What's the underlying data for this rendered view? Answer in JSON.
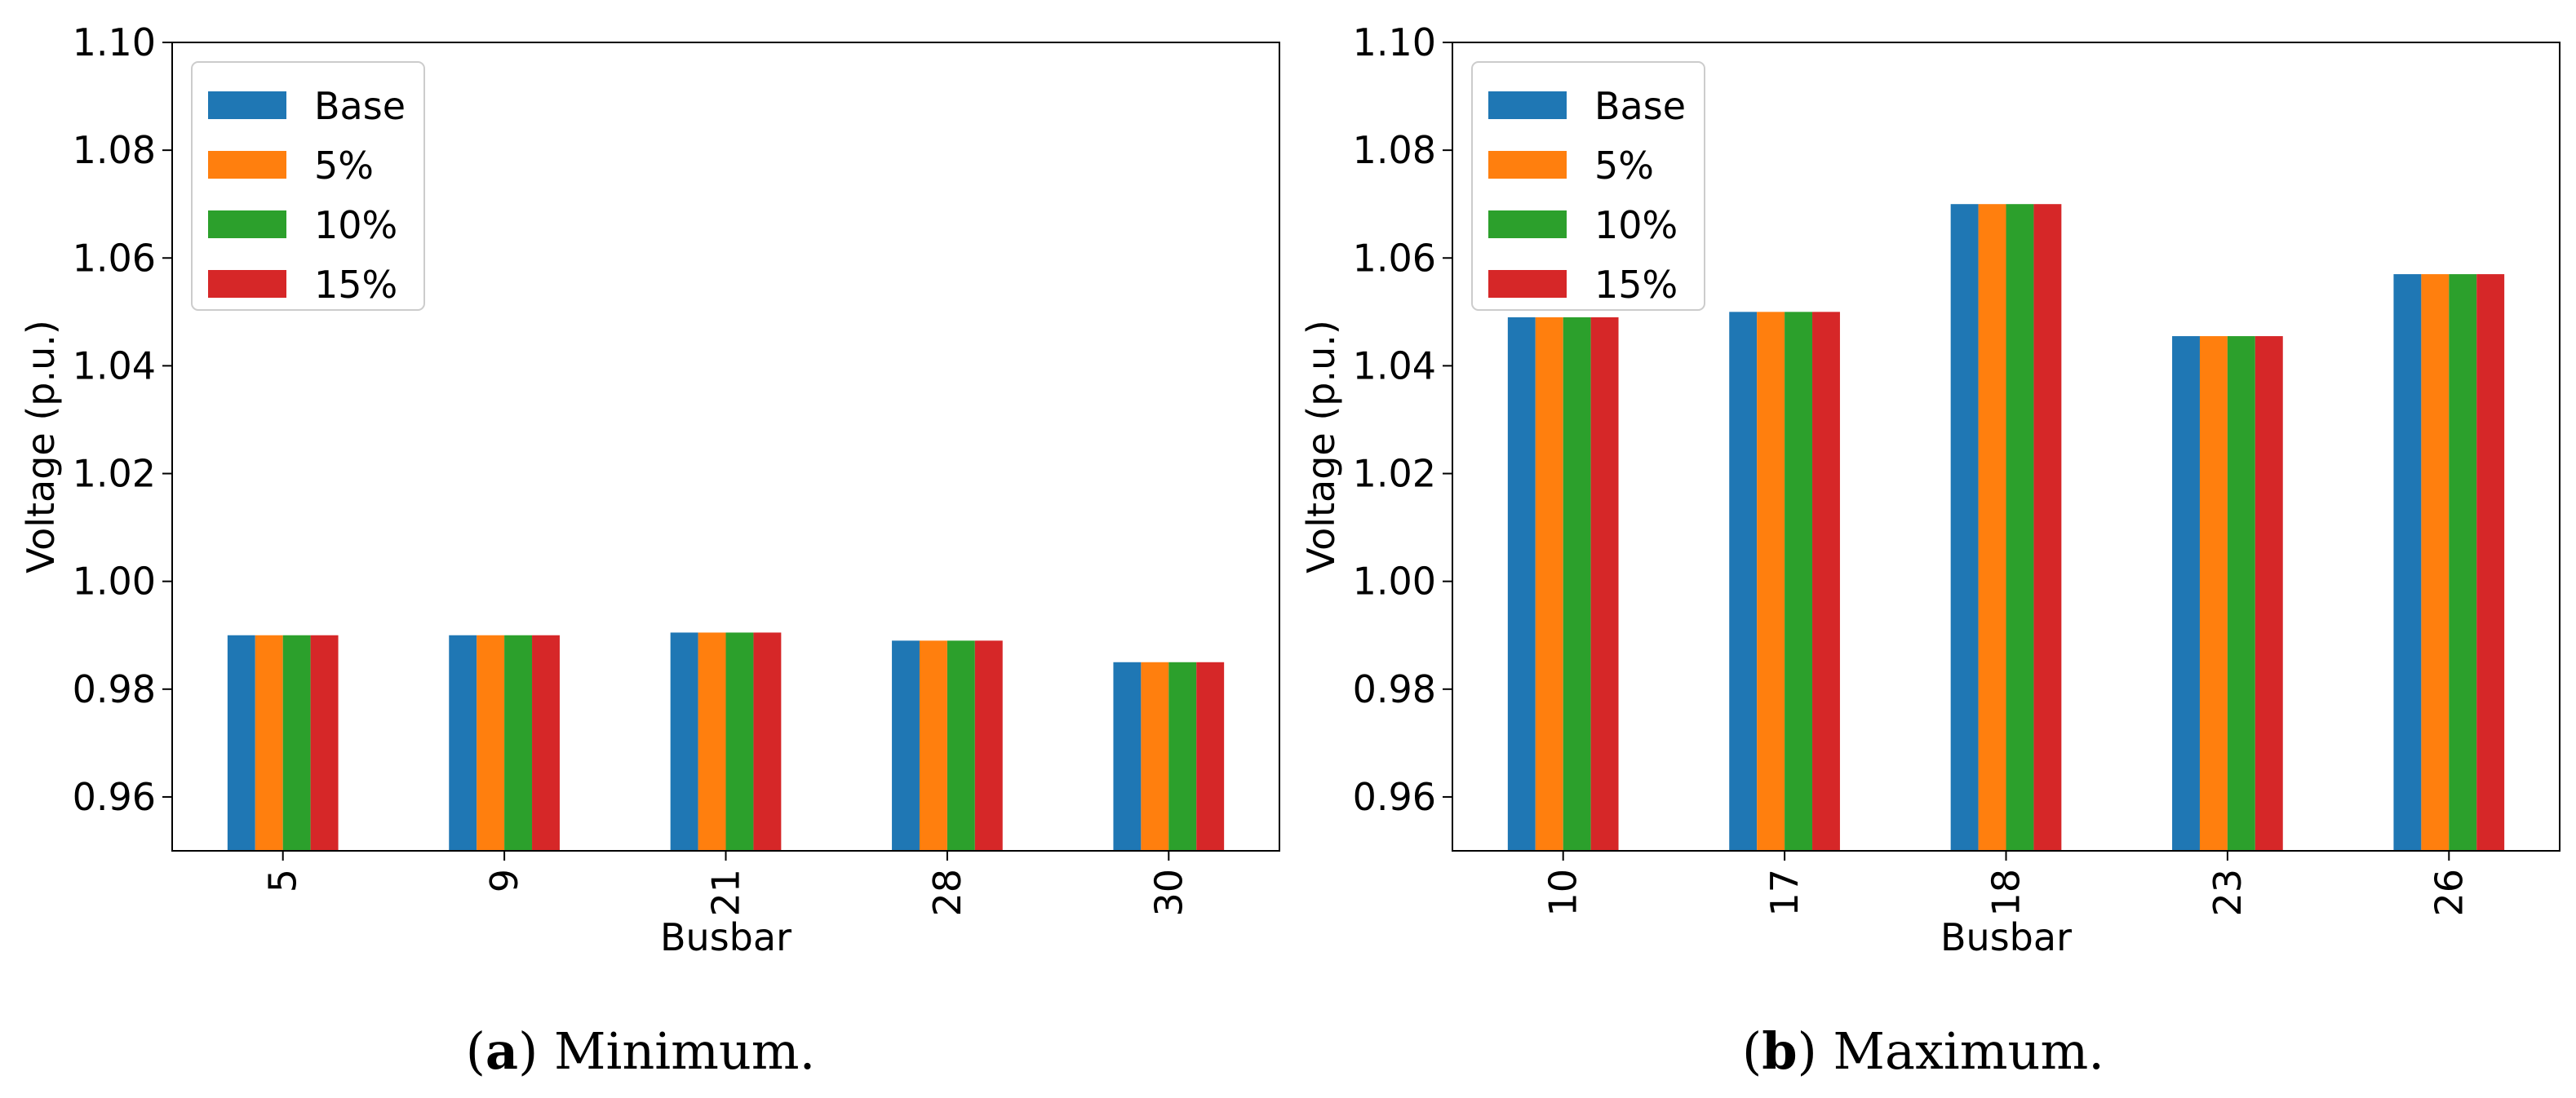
{
  "chart_data": [
    {
      "type": "bar",
      "panel_id": "a",
      "caption_letter": "a",
      "caption_text": "Minimum.",
      "title": "",
      "xlabel": "Busbar",
      "ylabel": "Voltage (p.u.)",
      "ylim": [
        0.95,
        1.1
      ],
      "yticks": [
        "0.96",
        "0.98",
        "1.00",
        "1.02",
        "1.04",
        "1.06",
        "1.08",
        "1.10"
      ],
      "grid": false,
      "legend_position": "top-left",
      "categories": [
        "5",
        "9",
        "21",
        "28",
        "30"
      ],
      "series": [
        {
          "name": "Base",
          "color": "#1f77b4",
          "values": [
            0.99,
            0.99,
            0.9905,
            0.989,
            0.985
          ]
        },
        {
          "name": "5%",
          "color": "#ff7f0e",
          "values": [
            0.99,
            0.99,
            0.9905,
            0.989,
            0.985
          ]
        },
        {
          "name": "10%",
          "color": "#2ca02c",
          "values": [
            0.99,
            0.99,
            0.9905,
            0.989,
            0.985
          ]
        },
        {
          "name": "15%",
          "color": "#d62728",
          "values": [
            0.99,
            0.99,
            0.9905,
            0.989,
            0.985
          ]
        }
      ]
    },
    {
      "type": "bar",
      "panel_id": "b",
      "caption_letter": "b",
      "caption_text": "Maximum.",
      "title": "",
      "xlabel": "Busbar",
      "ylabel": "Voltage (p.u.)",
      "ylim": [
        0.95,
        1.1
      ],
      "yticks": [
        "0.96",
        "0.98",
        "1.00",
        "1.02",
        "1.04",
        "1.06",
        "1.08",
        "1.10"
      ],
      "grid": false,
      "legend_position": "top-left",
      "categories": [
        "10",
        "17",
        "18",
        "23",
        "26"
      ],
      "series": [
        {
          "name": "Base",
          "color": "#1f77b4",
          "values": [
            1.049,
            1.05,
            1.07,
            1.0455,
            1.057
          ]
        },
        {
          "name": "5%",
          "color": "#ff7f0e",
          "values": [
            1.049,
            1.05,
            1.07,
            1.0455,
            1.057
          ]
        },
        {
          "name": "10%",
          "color": "#2ca02c",
          "values": [
            1.049,
            1.05,
            1.07,
            1.0455,
            1.057
          ]
        },
        {
          "name": "15%",
          "color": "#d62728",
          "values": [
            1.049,
            1.05,
            1.07,
            1.0455,
            1.057
          ]
        }
      ]
    }
  ]
}
